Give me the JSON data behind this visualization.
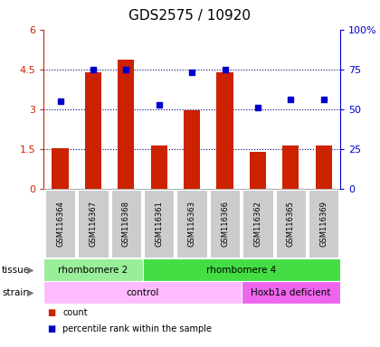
{
  "title": "GDS2575 / 10920",
  "samples": [
    "GSM116364",
    "GSM116367",
    "GSM116368",
    "GSM116361",
    "GSM116363",
    "GSM116366",
    "GSM116362",
    "GSM116365",
    "GSM116369"
  ],
  "counts": [
    1.55,
    4.4,
    4.85,
    1.65,
    2.95,
    4.4,
    1.4,
    1.65,
    1.65
  ],
  "percentiles_pct": [
    55,
    75,
    75,
    53,
    73,
    75,
    51,
    56,
    56
  ],
  "ylim_left": [
    0,
    6
  ],
  "ylim_right": [
    0,
    100
  ],
  "yticks_left": [
    0,
    1.5,
    3.0,
    4.5,
    6
  ],
  "yticks_right": [
    0,
    25,
    50,
    75,
    100
  ],
  "ytick_labels_left": [
    "0",
    "1.5",
    "3",
    "4.5",
    "6"
  ],
  "ytick_labels_right": [
    "0",
    "25",
    "50",
    "75",
    "100%"
  ],
  "bar_color": "#cc2200",
  "dot_color": "#0000cc",
  "tissue_groups": [
    {
      "label": "rhombomere 2",
      "start": 0,
      "end": 3,
      "color": "#99ee99"
    },
    {
      "label": "rhombomere 4",
      "start": 3,
      "end": 9,
      "color": "#44dd44"
    }
  ],
  "strain_groups": [
    {
      "label": "control",
      "start": 0,
      "end": 6,
      "color": "#ffbbff"
    },
    {
      "label": "Hoxb1a deficient",
      "start": 6,
      "end": 9,
      "color": "#ee66ee"
    }
  ],
  "bg_color": "#ffffff",
  "title_fontsize": 11,
  "bar_width": 0.5
}
